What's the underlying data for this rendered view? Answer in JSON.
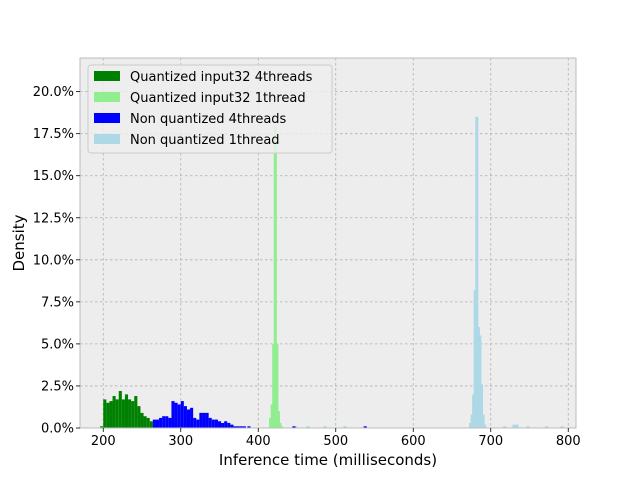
{
  "chart_data": {
    "type": "bar",
    "subtype": "histogram",
    "xlabel": "Inference time (milliseconds)",
    "ylabel": "Density",
    "xlim": [
      170,
      810
    ],
    "ylim": [
      0,
      0.22
    ],
    "xticks": [
      200,
      300,
      400,
      500,
      600,
      700,
      800
    ],
    "xtick_labels": [
      "200",
      "300",
      "400",
      "500",
      "600",
      "700",
      "800"
    ],
    "yticks": [
      0,
      0.025,
      0.05,
      0.075,
      0.1,
      0.125,
      0.15,
      0.175,
      0.2
    ],
    "ytick_labels": [
      "0.0%",
      "2.5%",
      "5.0%",
      "7.5%",
      "10.0%",
      "12.5%",
      "15.0%",
      "17.5%",
      "20.0%"
    ],
    "grid": true,
    "legend_position": "top-left",
    "bin_width_ms": 4,
    "series": [
      {
        "name": "Quantized input32 4threads",
        "color": "#008000",
        "bins": [
          [
            196,
            0.001
          ],
          [
            200,
            0.017
          ],
          [
            204,
            0.015
          ],
          [
            208,
            0.016
          ],
          [
            212,
            0.019
          ],
          [
            216,
            0.017
          ],
          [
            220,
            0.022
          ],
          [
            224,
            0.017
          ],
          [
            228,
            0.02
          ],
          [
            232,
            0.017
          ],
          [
            236,
            0.016
          ],
          [
            240,
            0.019
          ],
          [
            244,
            0.013
          ],
          [
            248,
            0.009
          ],
          [
            252,
            0.007
          ],
          [
            256,
            0.006
          ],
          [
            260,
            0.004
          ],
          [
            264,
            0.002
          ]
        ]
      },
      {
        "name": "Quantized input32 1thread",
        "color": "#90ee90",
        "bins": [
          [
            414,
            0.006
          ],
          [
            416,
            0.014
          ],
          [
            418,
            0.05
          ],
          [
            420,
            0.18
          ],
          [
            422,
            0.05
          ],
          [
            424,
            0.01
          ],
          [
            426,
            0.003
          ],
          [
            428,
            0.001
          ],
          [
            446,
            0.001
          ],
          [
            462,
            0.001
          ],
          [
            484,
            0.001
          ],
          [
            510,
            0.001
          ]
        ]
      },
      {
        "name": "Non quantized 4threads",
        "color": "#0000ff",
        "bins": [
          [
            264,
            0.005
          ],
          [
            268,
            0.005
          ],
          [
            272,
            0.006
          ],
          [
            276,
            0.007
          ],
          [
            280,
            0.007
          ],
          [
            284,
            0.006
          ],
          [
            288,
            0.016
          ],
          [
            292,
            0.015
          ],
          [
            296,
            0.014
          ],
          [
            300,
            0.016
          ],
          [
            304,
            0.013
          ],
          [
            308,
            0.011
          ],
          [
            312,
            0.012
          ],
          [
            316,
            0.006
          ],
          [
            320,
            0.005
          ],
          [
            324,
            0.009
          ],
          [
            328,
            0.009
          ],
          [
            332,
            0.009
          ],
          [
            336,
            0.006
          ],
          [
            340,
            0.005
          ],
          [
            344,
            0.005
          ],
          [
            348,
            0.004
          ],
          [
            352,
            0.003
          ],
          [
            356,
            0.004
          ],
          [
            360,
            0.003
          ],
          [
            364,
            0.002
          ],
          [
            368,
            0.001
          ],
          [
            372,
            0.001
          ],
          [
            376,
            0.001
          ],
          [
            380,
            0.001
          ],
          [
            386,
            0.001
          ],
          [
            444,
            0.001
          ],
          [
            536,
            0.001
          ]
        ]
      },
      {
        "name": "Non quantized 1thread",
        "color": "#add8e6",
        "bins": [
          [
            672,
            0.003
          ],
          [
            674,
            0.008
          ],
          [
            676,
            0.02
          ],
          [
            678,
            0.082
          ],
          [
            680,
            0.185
          ],
          [
            682,
            0.06
          ],
          [
            684,
            0.055
          ],
          [
            686,
            0.026
          ],
          [
            688,
            0.008
          ],
          [
            690,
            0.002
          ],
          [
            716,
            0.001
          ],
          [
            728,
            0.002
          ],
          [
            732,
            0.002
          ],
          [
            746,
            0.001
          ],
          [
            770,
            0.001
          ],
          [
            790,
            0.001
          ]
        ]
      }
    ]
  }
}
